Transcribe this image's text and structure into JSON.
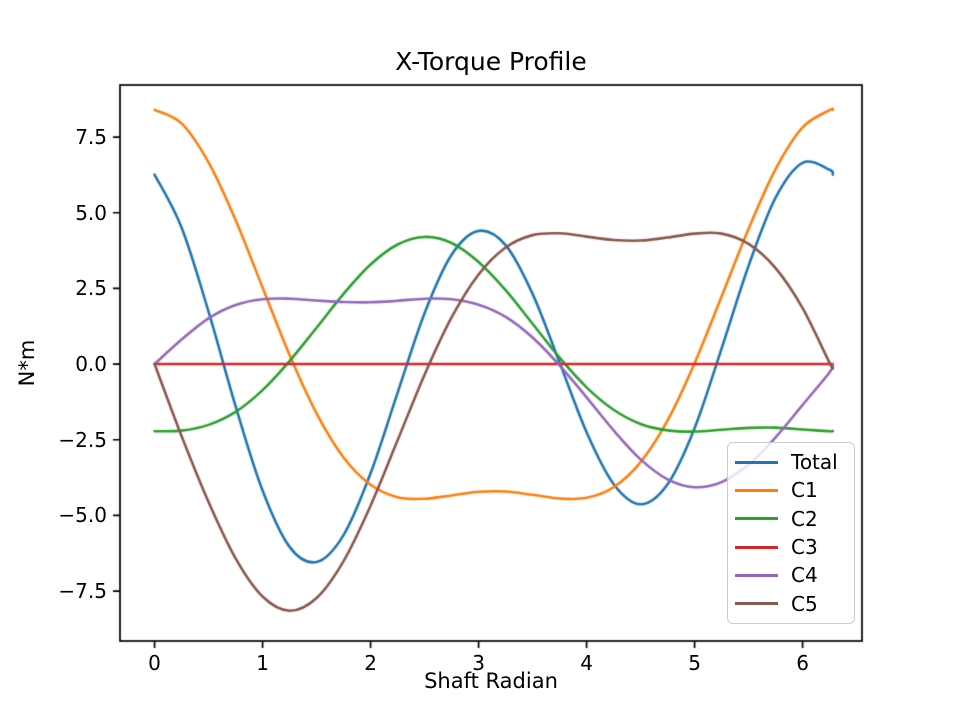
{
  "title": "X-Torque Profile",
  "xlabel": "Shaft Radian",
  "ylabel": "N*m",
  "chart_data": {
    "type": "line",
    "title": "X-Torque Profile",
    "xlabel": "Shaft Radian",
    "ylabel": "N*m",
    "xlim": [
      -0.32,
      6.55
    ],
    "ylim": [
      -9.15,
      9.22
    ],
    "x_ticks": [
      0,
      1,
      2,
      3,
      4,
      5,
      6
    ],
    "y_ticks": [
      -7.5,
      -5.0,
      -2.5,
      0.0,
      2.5,
      5.0,
      7.5
    ],
    "grid": false,
    "legend_position": "lower right",
    "background": "#ffffff",
    "x": [
      0,
      0.25,
      0.5,
      0.75,
      1.0,
      1.25,
      1.5,
      1.75,
      2.0,
      2.25,
      2.5,
      2.75,
      3.0,
      3.25,
      3.5,
      3.75,
      4.0,
      4.25,
      4.5,
      4.75,
      5.0,
      5.25,
      5.5,
      5.75,
      6.0,
      6.25,
      6.28
    ],
    "series": [
      {
        "name": "Total",
        "color": "#1f77b4",
        "values": [
          6.26,
          4.51,
          1.73,
          -1.39,
          -4.18,
          -6.04,
          -6.54,
          -5.65,
          -3.61,
          -0.95,
          1.68,
          3.61,
          4.4,
          3.93,
          2.32,
          0.05,
          -2.25,
          -3.96,
          -4.63,
          -3.97,
          -2.12,
          0.51,
          3.25,
          5.5,
          6.65,
          6.42,
          6.26
        ]
      },
      {
        "name": "C1",
        "color": "#ff7f0e",
        "values": [
          8.4,
          7.95,
          6.66,
          4.76,
          2.53,
          0.3,
          -1.63,
          -3.09,
          -3.99,
          -4.4,
          -4.45,
          -4.34,
          -4.22,
          -4.21,
          -4.32,
          -4.44,
          -4.42,
          -4.07,
          -3.24,
          -1.86,
          0.03,
          2.23,
          4.47,
          6.44,
          7.82,
          8.39,
          8.4
        ]
      },
      {
        "name": "C2",
        "color": "#2ca02c",
        "values": [
          -2.22,
          -2.2,
          -2.01,
          -1.58,
          -0.86,
          0.1,
          1.2,
          2.32,
          3.29,
          3.95,
          4.2,
          4.0,
          3.37,
          2.44,
          1.33,
          0.21,
          -0.77,
          -1.51,
          -1.98,
          -2.19,
          -2.23,
          -2.17,
          -2.11,
          -2.1,
          -2.16,
          -2.22,
          -2.21
        ]
      },
      {
        "name": "C3",
        "color": "#d62728",
        "values": [
          0,
          0,
          0,
          0,
          0,
          0,
          0,
          0,
          0,
          0,
          0,
          0,
          0,
          0,
          0,
          0,
          0,
          0,
          0,
          0,
          0,
          0,
          0,
          0,
          0,
          0,
          0
        ]
      },
      {
        "name": "C4",
        "color": "#9467bd",
        "values": [
          0.0,
          0.81,
          1.51,
          1.95,
          2.14,
          2.16,
          2.1,
          2.05,
          2.04,
          2.09,
          2.16,
          2.14,
          1.96,
          1.56,
          0.88,
          -0.04,
          -1.1,
          -2.19,
          -3.15,
          -3.81,
          -4.07,
          -3.9,
          -3.32,
          -2.42,
          -1.35,
          -0.27,
          0.0
        ]
      },
      {
        "name": "C5",
        "color": "#8c564b",
        "values": [
          0.0,
          -2.38,
          -4.56,
          -6.42,
          -7.68,
          -8.15,
          -7.73,
          -6.51,
          -4.68,
          -2.52,
          -0.35,
          1.54,
          2.96,
          3.85,
          4.26,
          4.32,
          4.21,
          4.1,
          4.08,
          4.18,
          4.31,
          4.31,
          3.97,
          3.17,
          1.85,
          0.04,
          -0.1
        ]
      }
    ]
  }
}
